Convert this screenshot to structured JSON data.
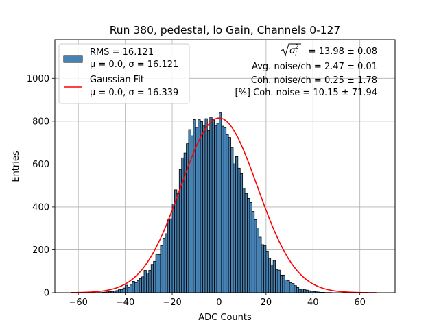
{
  "chart_data": {
    "type": "bar",
    "title": "Run 380, pedestal, lo Gain, Channels 0-127",
    "xlabel": "ADC Counts",
    "ylabel": "Entries",
    "xlim": [
      -70,
      75
    ],
    "ylim": [
      0,
      1180
    ],
    "xticks": [
      -60,
      -40,
      -20,
      0,
      20,
      40,
      60
    ],
    "xtick_labels": [
      "−60",
      "−40",
      "−20",
      "0",
      "20",
      "40",
      "60"
    ],
    "yticks": [
      0,
      200,
      400,
      600,
      800,
      1000
    ],
    "ytick_labels": [
      "0",
      "200",
      "400",
      "600",
      "800",
      "1000"
    ],
    "grid": true,
    "legend_position": "top-left",
    "bin_width": 1,
    "bin_start": -63,
    "counts": [
      0,
      0,
      0,
      0,
      0,
      0,
      0,
      0,
      0,
      0,
      0,
      1,
      1,
      2,
      3,
      4,
      5,
      6,
      8,
      10,
      14,
      15,
      22,
      35,
      25,
      36,
      53,
      47,
      57,
      66,
      74,
      104,
      91,
      104,
      132,
      146,
      179,
      178,
      220,
      254,
      275,
      340,
      345,
      414,
      480,
      463,
      575,
      629,
      652,
      695,
      761,
      732,
      808,
      771,
      807,
      798,
      778,
      812,
      756,
      819,
      809,
      780,
      790,
      839,
      777,
      770,
      737,
      724,
      676,
      601,
      635,
      581,
      555,
      487,
      463,
      440,
      421,
      379,
      341,
      302,
      259,
      224,
      219,
      194,
      160,
      130,
      150,
      108,
      105,
      82,
      82,
      59,
      56,
      47,
      43,
      33,
      24,
      16,
      17,
      14,
      12,
      9,
      7,
      5,
      4,
      3,
      2,
      2,
      1,
      1,
      1,
      0,
      0,
      0,
      0,
      0,
      0,
      0,
      0,
      0,
      0,
      0,
      0,
      0,
      0,
      0,
      0,
      0,
      0,
      0
    ],
    "fit": {
      "type": "gaussian",
      "mu": 0.0,
      "sigma": 16.339,
      "amplitude": 815,
      "x_range": [
        -63,
        67
      ]
    },
    "series": [
      {
        "name": "histogram",
        "label_line1": "RMS = 16.121",
        "label_line2": "μ = 0.0, σ = 16.121",
        "color": "#4682b4"
      },
      {
        "name": "gaussian_fit",
        "label_line1": "Gaussian Fit",
        "label_line2": "μ = 0.0, σ = 16.339",
        "color": "#ff0000"
      }
    ],
    "annotations": {
      "sigma_value": " = 13.98 ± 0.08",
      "avg_noise": "Avg. noise/ch = 2.47 ± 0.01",
      "coh_noise": "Coh. noise/ch = 0.25 ± 1.78",
      "coh_noise_pct": "[%] Coh. noise = 10.15 ± 71.94"
    }
  }
}
